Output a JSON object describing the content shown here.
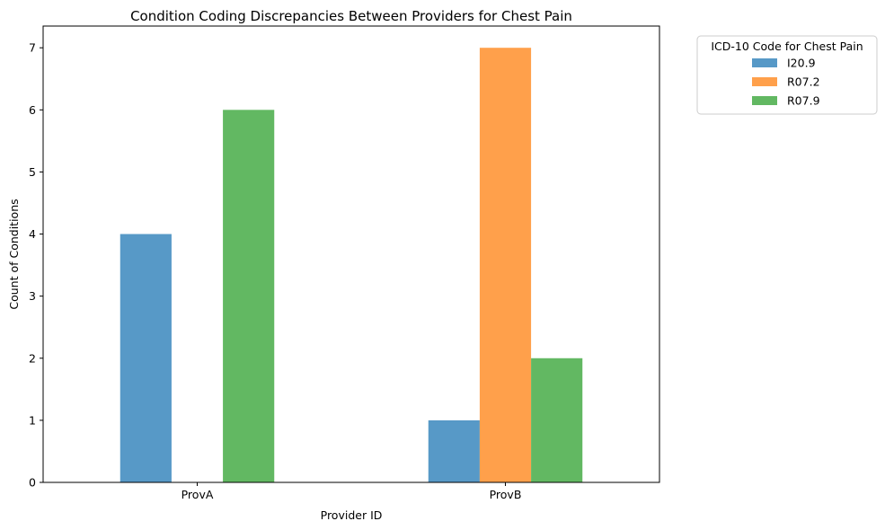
{
  "chart_data": {
    "type": "bar",
    "title": "Condition Coding Discrepancies Between Providers for Chest Pain",
    "xlabel": "Provider ID",
    "ylabel": "Count of Conditions",
    "categories": [
      "ProvA",
      "ProvB"
    ],
    "series": [
      {
        "name": "I20.9",
        "values": [
          4,
          1
        ],
        "color": "#5799c7"
      },
      {
        "name": "R07.2",
        "values": [
          0,
          7
        ],
        "color": "#ffa04b"
      },
      {
        "name": "R07.9",
        "values": [
          6,
          2
        ],
        "color": "#62b862"
      }
    ],
    "ylim": [
      0,
      7.35
    ],
    "yticks": [
      0,
      1,
      2,
      3,
      4,
      5,
      6,
      7
    ],
    "legend_title": "ICD-10 Code for Chest Pain",
    "legend_position": "outside upper right",
    "grid": false
  }
}
